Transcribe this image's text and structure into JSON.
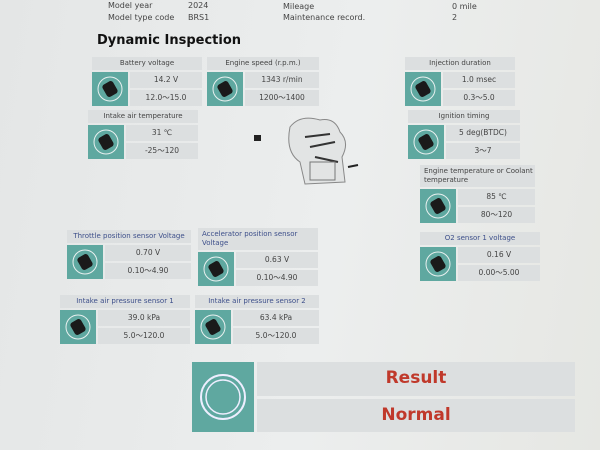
{
  "header": {
    "model_year_label": "Model year",
    "model_year": "2024",
    "model_type_label": "Model type code",
    "model_type": "BRS1",
    "mileage_label": "Mileage",
    "mileage": "0 mile",
    "maintenance_label": "Maintenance record.",
    "maintenance": "2"
  },
  "section_title": "Dynamic Inspection",
  "cards": [
    {
      "label": "Battery voltage",
      "value": "14.2  V",
      "range": "12.0～15.0",
      "icon": "battery-icon"
    },
    {
      "label": "Engine speed (r.p.m.)",
      "value": "1343  r/min",
      "range": "1200～1400",
      "icon": "tachometer-icon"
    },
    {
      "label": "Injection duration",
      "value": "1.0  msec",
      "range": "0.3～5.0",
      "icon": "injector-icon"
    },
    {
      "label": "Intake air temperature",
      "value": "31  ℃",
      "range": "-25～120",
      "icon": "temperature-sensor-icon"
    },
    {
      "label": "Ignition timing",
      "value": "5  deg(BTDC)",
      "range": "3～7",
      "icon": "spark-plug-icon"
    },
    {
      "label": "Engine temperature or Coolant temperature",
      "value": "85  ℃",
      "range": "80～120",
      "icon": "coolant-sensor-icon"
    },
    {
      "label": "O2 sensor 1 voltage",
      "value": "0.16  V",
      "range": "0.00～5.00",
      "icon": "o2-sensor-icon"
    },
    {
      "label": "Throttle position sensor Voltage",
      "value": "0.70  V",
      "range": "0.10～4.90",
      "icon": "throttle-sensor-icon"
    },
    {
      "label": "Accelerator position sensor Voltage",
      "value": "0.63  V",
      "range": "0.10～4.90",
      "icon": "accelerator-sensor-icon"
    },
    {
      "label": "Intake air pressure sensor 1",
      "value": "39.0  kPa",
      "range": "5.0～120.0",
      "icon": "pressure-sensor-icon"
    },
    {
      "label": "Intake air pressure sensor 2",
      "value": "63.4  kPa",
      "range": "5.0～120.0",
      "icon": "pressure-sensor-icon"
    }
  ],
  "result": {
    "label": "Result",
    "value": "Normal",
    "color": "#c0392b"
  },
  "colors": {
    "icon_bg": "#5fa8a0",
    "cell_bg": "#dcdfe0"
  }
}
